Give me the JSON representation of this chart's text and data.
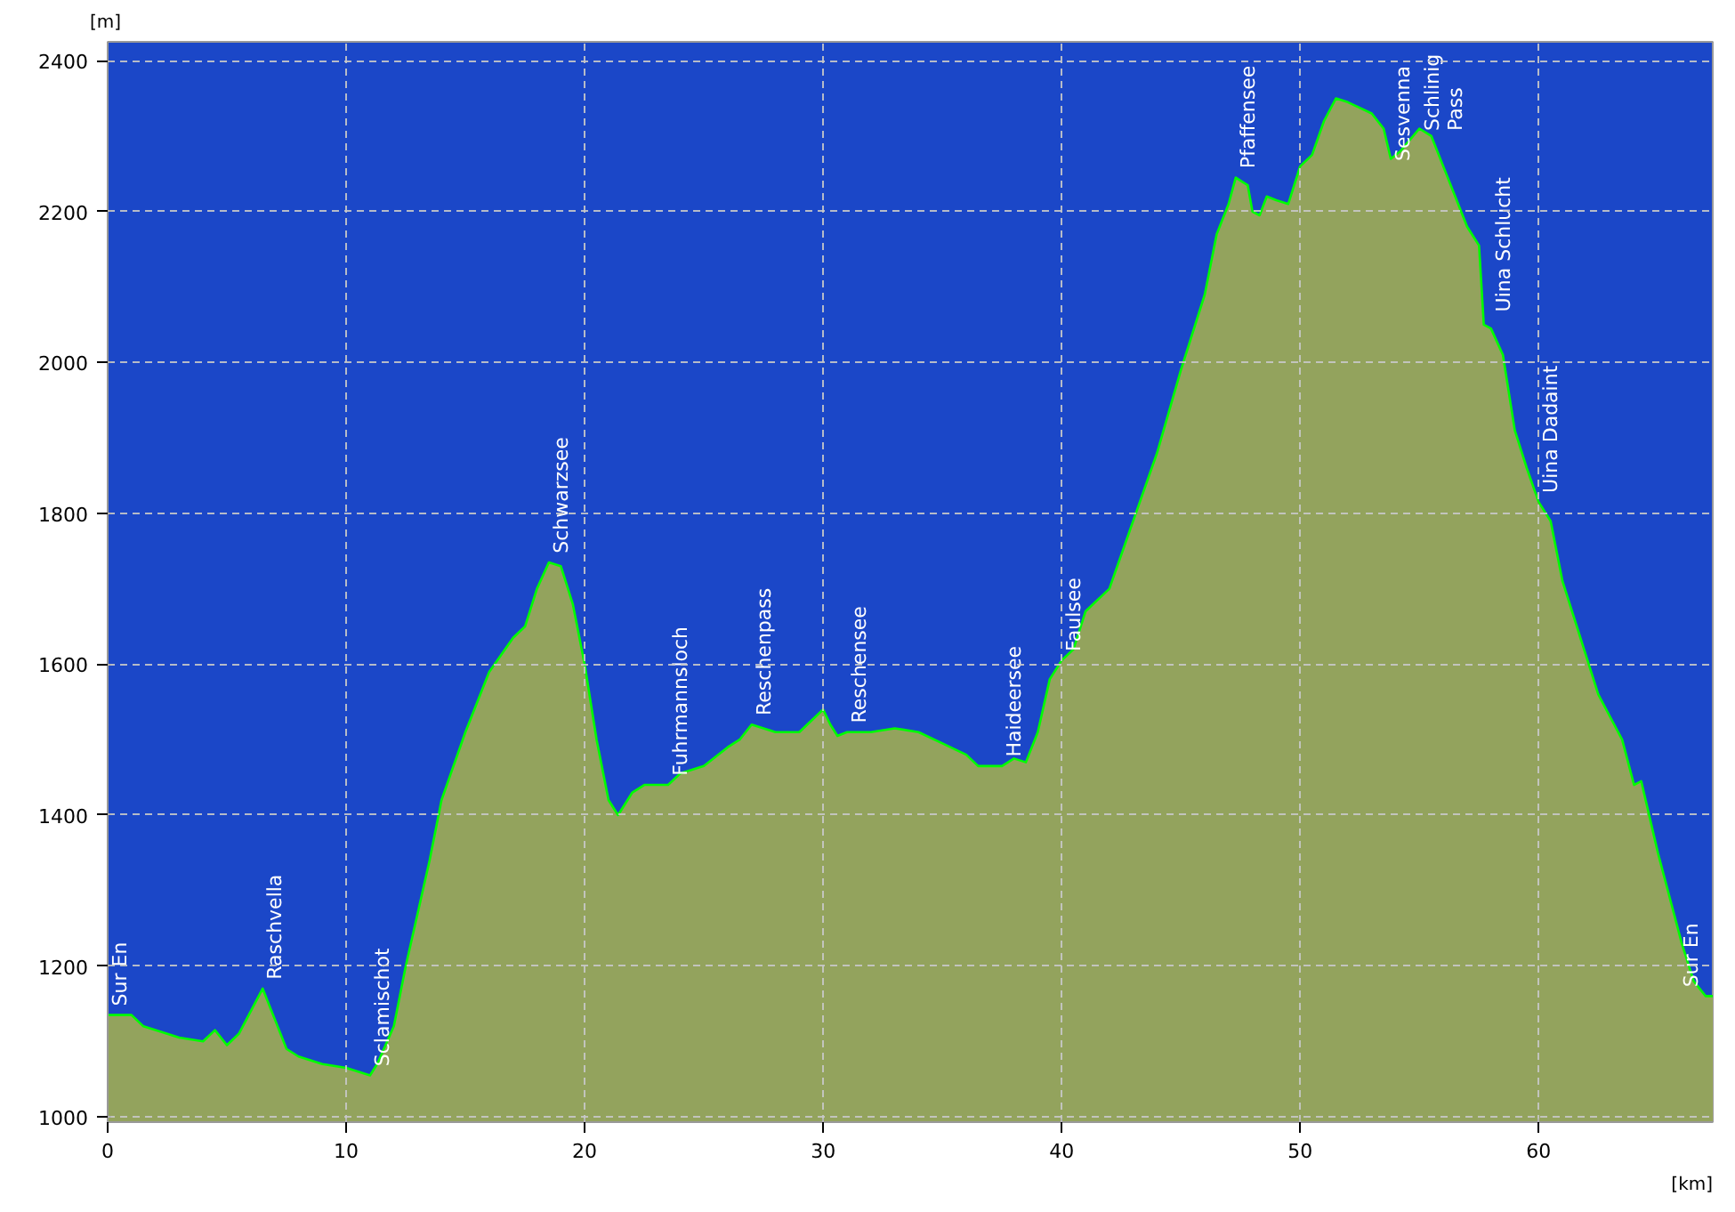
{
  "chart_data": {
    "type": "area",
    "xlabel": "[km]",
    "ylabel": "[m]",
    "xlim": [
      0,
      67.3
    ],
    "ylim": [
      993,
      2425
    ],
    "xticks": [
      0,
      10,
      20,
      30,
      40,
      50,
      60
    ],
    "yticks": [
      1000,
      1200,
      1400,
      1600,
      1800,
      2000,
      2200,
      2400
    ],
    "grid": true,
    "series": [
      {
        "color": "#00ff00",
        "x": [
          0,
          1,
          1.5,
          2,
          2.5,
          3,
          4,
          4.5,
          5,
          5.5,
          6,
          6.5,
          7,
          7.5,
          8,
          9,
          10,
          10.5,
          11,
          11.3,
          12,
          12.5,
          13,
          13.5,
          14,
          15,
          16,
          17,
          17.5,
          18,
          18.5,
          19,
          19.5,
          20,
          20.5,
          21,
          21.4,
          22,
          22.5,
          23.5,
          24,
          25,
          26,
          26.5,
          27,
          27.5,
          28,
          29,
          30,
          30.3,
          30.6,
          31,
          32,
          33,
          34,
          35,
          36,
          36.5,
          37.5,
          38,
          38.5,
          39,
          39.5,
          40,
          40.5,
          41,
          42,
          43,
          44,
          45,
          46,
          46.5,
          47,
          47.3,
          47.8,
          48,
          48.3,
          48.6,
          49,
          49.5,
          50,
          50.5,
          51,
          51.5,
          52,
          53,
          53.5,
          53.8,
          54.2,
          55,
          55.5,
          56,
          56.5,
          57,
          57.5,
          57.7,
          58,
          58.5,
          59,
          59.5,
          60,
          60.5,
          61,
          62,
          62.5,
          63,
          63.5,
          64,
          64.3,
          65,
          65.5,
          66,
          66.5,
          67,
          67.3
        ],
        "values": [
          1135,
          1135,
          1120,
          1115,
          1110,
          1105,
          1100,
          1115,
          1095,
          1110,
          1140,
          1170,
          1130,
          1090,
          1080,
          1070,
          1065,
          1060,
          1055,
          1070,
          1120,
          1200,
          1270,
          1340,
          1420,
          1510,
          1590,
          1635,
          1650,
          1700,
          1735,
          1730,
          1680,
          1600,
          1500,
          1420,
          1400,
          1430,
          1440,
          1440,
          1455,
          1465,
          1490,
          1500,
          1520,
          1515,
          1510,
          1510,
          1540,
          1520,
          1505,
          1510,
          1510,
          1515,
          1510,
          1495,
          1480,
          1465,
          1465,
          1475,
          1470,
          1510,
          1580,
          1605,
          1620,
          1670,
          1700,
          1790,
          1880,
          1990,
          2090,
          2170,
          2210,
          2245,
          2235,
          2200,
          2195,
          2220,
          2215,
          2210,
          2260,
          2275,
          2320,
          2350,
          2345,
          2330,
          2310,
          2270,
          2280,
          2310,
          2300,
          2260,
          2220,
          2180,
          2155,
          2050,
          2045,
          2010,
          1910,
          1860,
          1815,
          1790,
          1710,
          1610,
          1560,
          1530,
          1500,
          1440,
          1445,
          1350,
          1290,
          1230,
          1180,
          1160,
          1160
        ]
      }
    ],
    "annotations": [
      {
        "text": "Sur En",
        "x": 0,
        "y": 1140
      },
      {
        "text": "Raschvella",
        "x": 6.5,
        "y": 1175
      },
      {
        "text": "Sclamischot",
        "x": 11,
        "y": 1060
      },
      {
        "text": "Schwarzsee",
        "x": 18.5,
        "y": 1740
      },
      {
        "text": "Fuhrmannsloch",
        "x": 23.5,
        "y": 1445
      },
      {
        "text": "Reschenpass",
        "x": 27,
        "y": 1525
      },
      {
        "text": "Reschensee",
        "x": 31,
        "y": 1515
      },
      {
        "text": "Haideersee",
        "x": 37.5,
        "y": 1470
      },
      {
        "text": "Faulsee",
        "x": 40,
        "y": 1610
      },
      {
        "text": "Pfaffensee",
        "x": 47.3,
        "y": 2250
      },
      {
        "text": "Sesvenna",
        "x": 53.8,
        "y": 2260
      },
      {
        "text": "Schlinig\nPass",
        "x": 55.5,
        "y": 2300
      },
      {
        "text": "Uina Schlucht",
        "x": 58,
        "y": 2060
      },
      {
        "text": "Uina Dadaint",
        "x": 60,
        "y": 1820
      },
      {
        "text": "Sur En",
        "x": 67,
        "y": 1165
      }
    ]
  }
}
